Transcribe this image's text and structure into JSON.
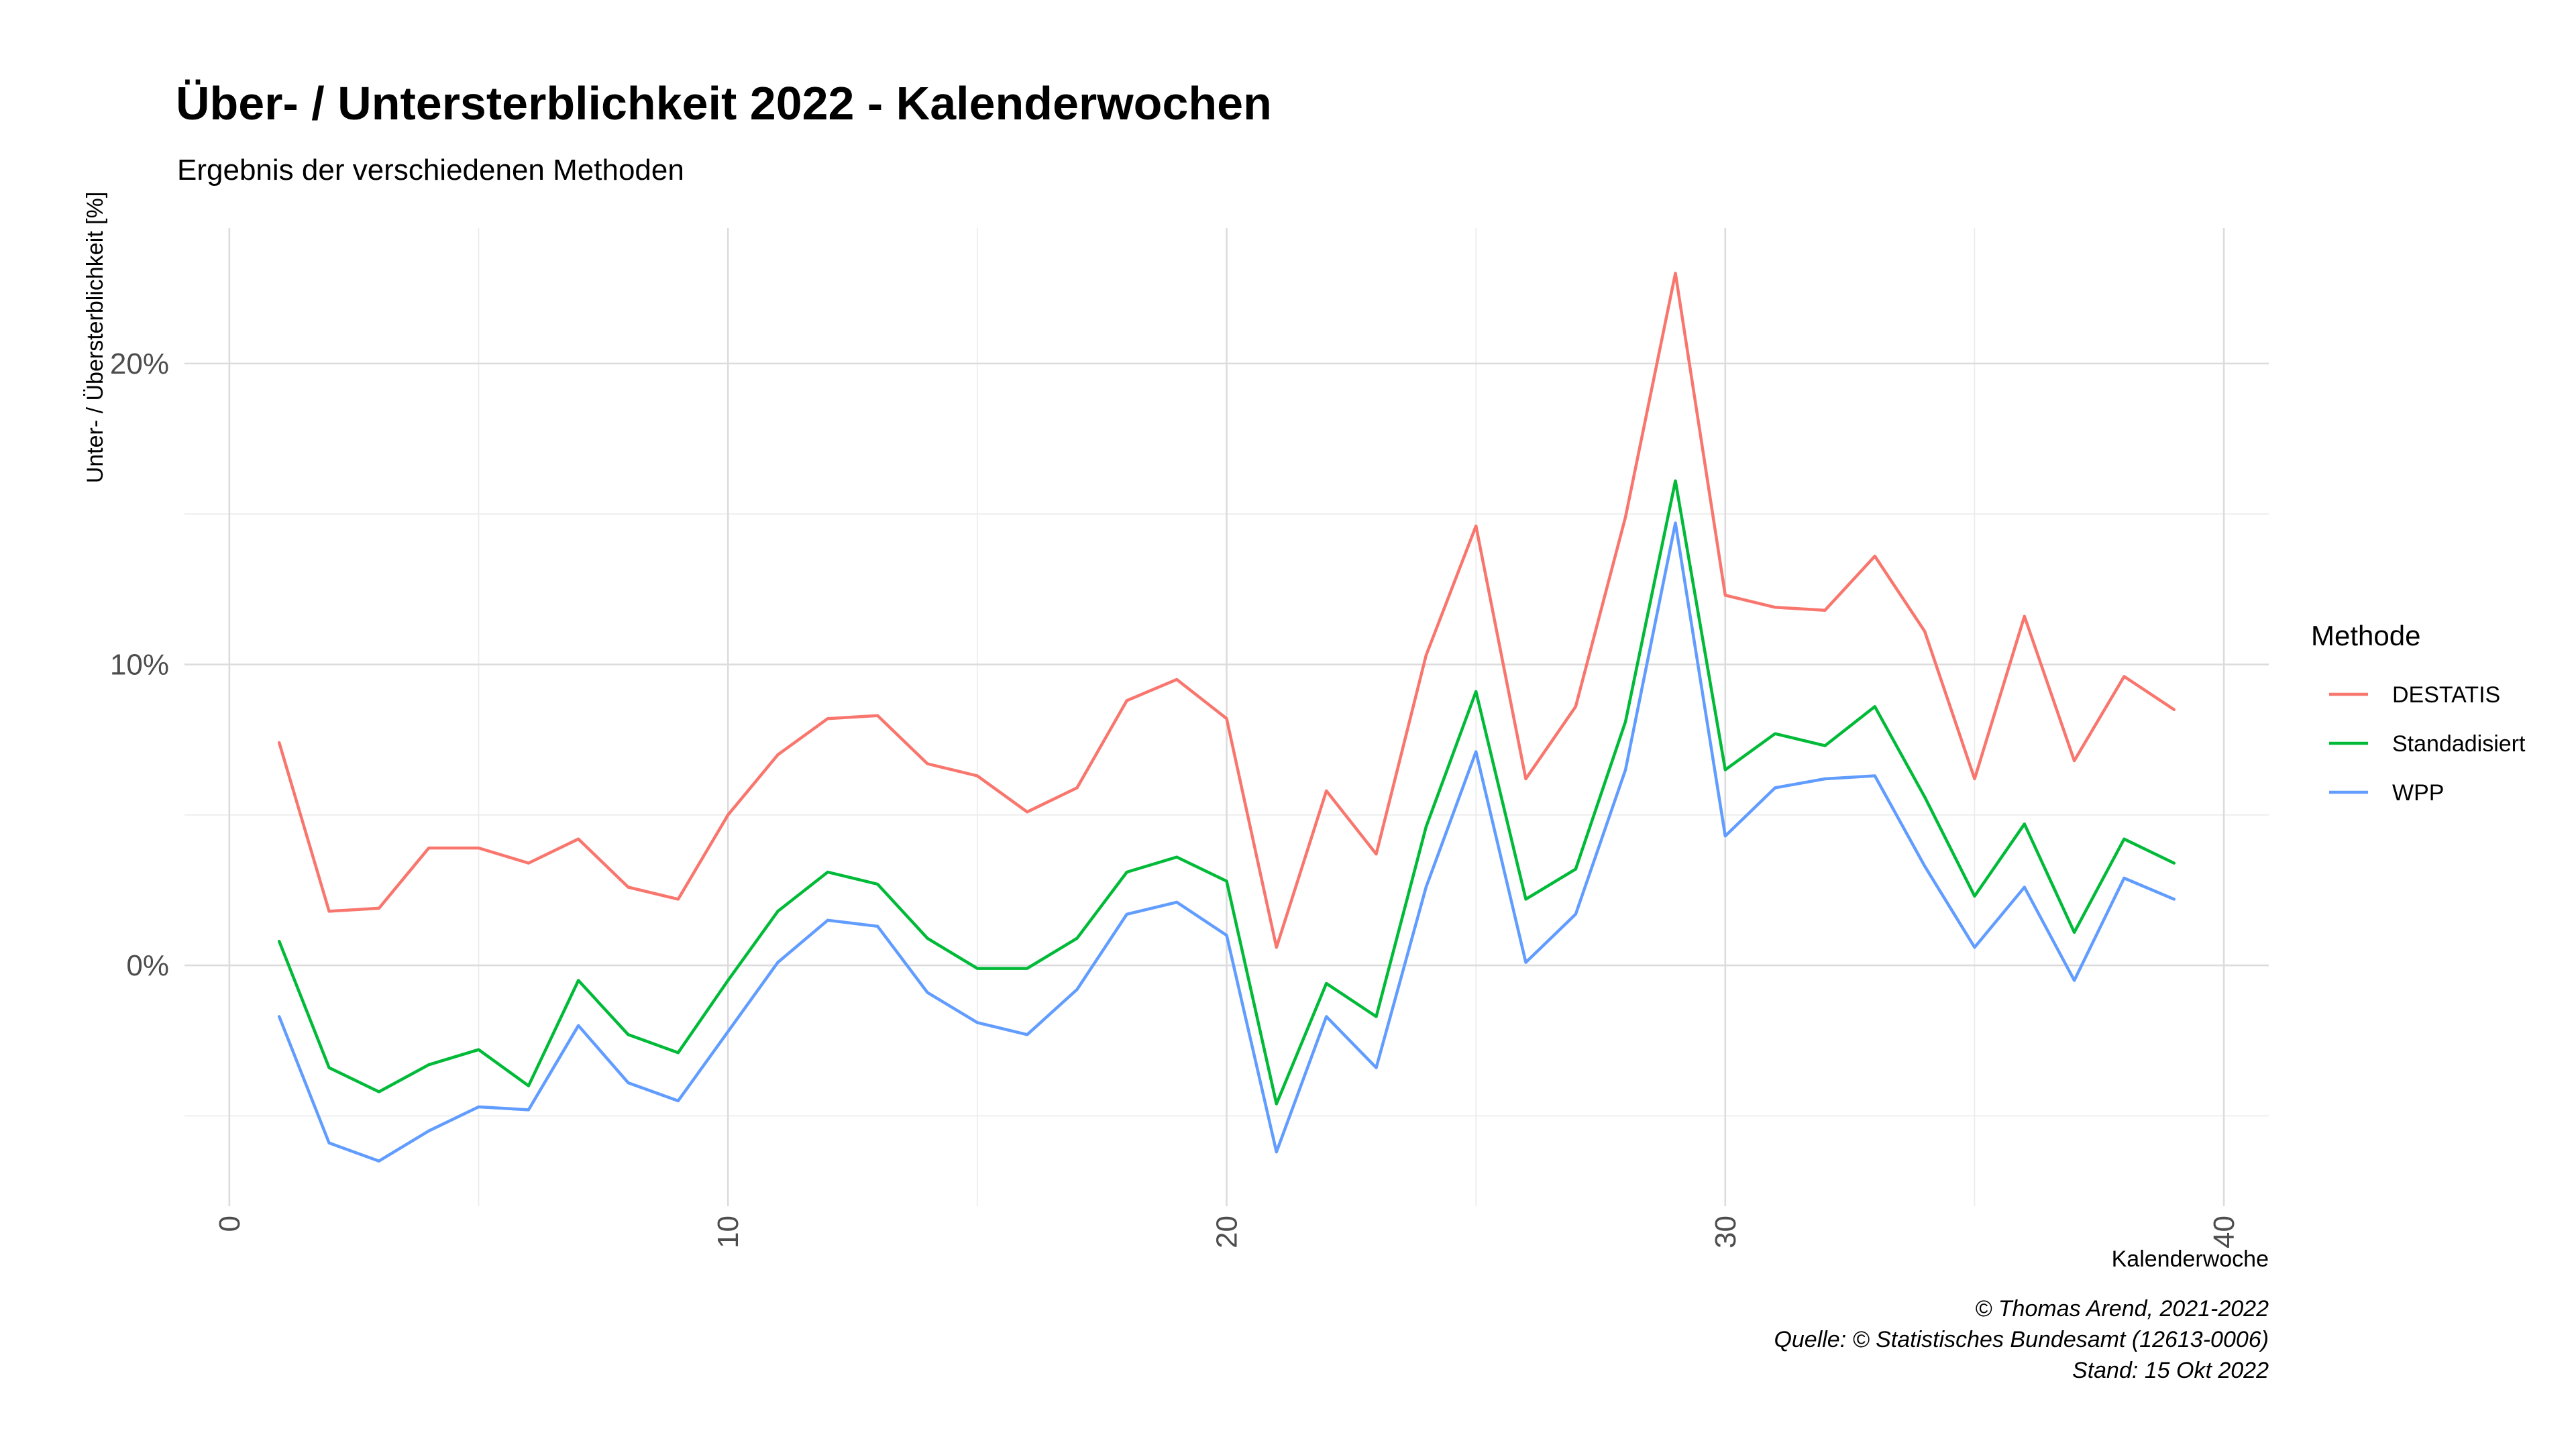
{
  "title": "Über- / Untersterblichkeit 2022 - Kalenderwochen",
  "subtitle": "Ergebnis der verschiedenen Methoden",
  "caption": {
    "line1": "© Thomas Arend, 2021-2022",
    "line2": "Quelle: © Statistisches Bundesamt (12613-0006)",
    "line3": "Stand: 15 Okt 2022"
  },
  "chart_data": {
    "type": "line",
    "title": "Über- / Untersterblichkeit 2022 - Kalenderwochen",
    "subtitle": "Ergebnis der verschiedenen Methoden",
    "xlabel": "Kalenderwoche",
    "ylabel": "Unter- / Übersterblichkeit [%]",
    "xlim": [
      -0.9,
      40.9
    ],
    "ylim": [
      -8,
      24.5
    ],
    "x_ticks": [
      0,
      10,
      20,
      30,
      40
    ],
    "x_tick_labels": [
      "0",
      "10",
      "20",
      "30",
      "40"
    ],
    "y_ticks": [
      0,
      10,
      20
    ],
    "y_tick_labels": [
      "0%",
      "10%",
      "20%"
    ],
    "grid": true,
    "legend_title": "Methode",
    "legend_position": "right",
    "x": [
      1,
      2,
      3,
      4,
      5,
      6,
      7,
      8,
      9,
      10,
      11,
      12,
      13,
      14,
      15,
      16,
      17,
      18,
      19,
      20,
      21,
      22,
      23,
      24,
      25,
      26,
      27,
      28,
      29,
      30,
      31,
      32,
      33,
      34,
      35,
      36,
      37,
      38,
      39
    ],
    "series": [
      {
        "name": "DESTATIS",
        "color": "#F8766D",
        "values": [
          7.4,
          1.8,
          1.9,
          3.9,
          3.9,
          3.4,
          4.2,
          2.6,
          2.2,
          5.0,
          7.0,
          8.2,
          8.3,
          6.7,
          6.3,
          5.1,
          5.9,
          8.8,
          9.5,
          8.2,
          0.6,
          5.8,
          3.7,
          10.3,
          14.6,
          6.2,
          8.6,
          14.9,
          23.0,
          12.3,
          11.9,
          11.8,
          13.6,
          11.1,
          6.2,
          11.6,
          6.8,
          9.6,
          8.5
        ]
      },
      {
        "name": "Standadisiert",
        "color": "#00BA38",
        "values": [
          0.8,
          -3.4,
          -4.2,
          -3.3,
          -2.8,
          -4.0,
          -0.5,
          -2.3,
          -2.9,
          -0.5,
          1.8,
          3.1,
          2.7,
          0.9,
          -0.1,
          -0.1,
          0.9,
          3.1,
          3.6,
          2.8,
          -4.6,
          -0.6,
          -1.7,
          4.6,
          9.1,
          2.2,
          3.2,
          8.1,
          16.1,
          6.5,
          7.7,
          7.3,
          8.6,
          5.6,
          2.3,
          4.7,
          1.1,
          4.2,
          3.4
        ]
      },
      {
        "name": "WPP",
        "color": "#619CFF",
        "values": [
          -1.7,
          -5.9,
          -6.5,
          -5.5,
          -4.7,
          -4.8,
          -2.0,
          -3.9,
          -4.5,
          -2.2,
          0.1,
          1.5,
          1.3,
          -0.9,
          -1.9,
          -2.3,
          -0.8,
          1.7,
          2.1,
          1.0,
          -6.2,
          -1.7,
          -3.4,
          2.6,
          7.1,
          0.1,
          1.7,
          6.5,
          14.7,
          4.3,
          5.9,
          6.2,
          6.3,
          3.3,
          0.6,
          2.6,
          -0.5,
          2.9,
          2.2
        ]
      }
    ]
  }
}
